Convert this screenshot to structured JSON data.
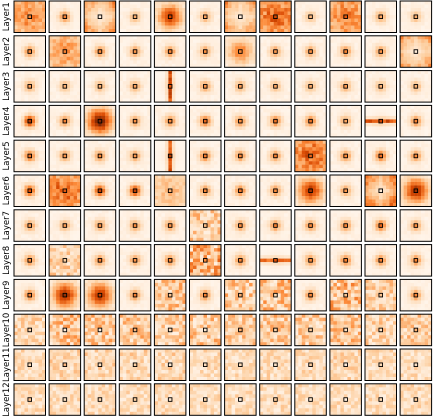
{
  "chart_data": {
    "type": "heatmap",
    "description_kind": "grid of attention-map heatmaps, one row per layer",
    "row_labels": [
      "Layer1",
      "Layer2",
      "Layer3",
      "Layer4",
      "Layer5",
      "Layer6",
      "Layer7",
      "Layer8",
      "Layer9",
      "Layer10",
      "Layer11",
      "Layer12"
    ],
    "n_cols": 12,
    "colormap": [
      "#fff5eb",
      "#fdd0a2",
      "#fd8d3c",
      "#d94801",
      "#7f2704"
    ],
    "grid": false,
    "legend": "none",
    "patterns": [
      [
        [
          "block",
          0.8
        ],
        [
          "peak",
          0.5
        ],
        [
          "edge",
          0.6
        ],
        [
          "peak",
          0.35
        ],
        [
          "blob",
          0.75
        ],
        [
          "peak",
          0.4
        ],
        [
          "edge",
          0.6
        ],
        [
          "block",
          1.0
        ],
        [
          "peak",
          0.3
        ],
        [
          "block",
          0.9
        ],
        [
          "peak",
          0.4
        ],
        [
          "peak",
          0.35
        ]
      ],
      [
        [
          "peak",
          0.5
        ],
        [
          "block",
          0.7
        ],
        [
          "peak",
          0.5
        ],
        [
          "peak",
          0.45
        ],
        [
          "peak",
          0.5
        ],
        [
          "peak",
          0.45
        ],
        [
          "blob",
          0.5
        ],
        [
          "peak",
          0.45
        ],
        [
          "peak",
          0.45
        ],
        [
          "peak",
          0.5
        ],
        [
          "peak",
          0.45
        ],
        [
          "edge",
          0.6
        ]
      ],
      [
        [
          "peak",
          0.4
        ],
        [
          "peak",
          0.35
        ],
        [
          "peak",
          0.35
        ],
        [
          "peak",
          0.4
        ],
        [
          "vline",
          0.8
        ],
        [
          "peak",
          0.45
        ],
        [
          "peak",
          0.4
        ],
        [
          "peak",
          0.35
        ],
        [
          "peak",
          0.35
        ],
        [
          "peak",
          0.4
        ],
        [
          "peak",
          0.35
        ],
        [
          "peak",
          0.35
        ]
      ],
      [
        [
          "peak",
          0.85
        ],
        [
          "peak",
          0.5
        ],
        [
          "blob",
          1.0
        ],
        [
          "peak",
          0.45
        ],
        [
          "peak",
          0.5
        ],
        [
          "peak",
          0.6
        ],
        [
          "peak",
          0.5
        ],
        [
          "peak",
          0.55
        ],
        [
          "peak",
          0.55
        ],
        [
          "peak",
          0.4
        ],
        [
          "hline",
          0.8
        ],
        [
          "peak",
          0.5
        ]
      ],
      [
        [
          "peak",
          0.6
        ],
        [
          "peak",
          0.45
        ],
        [
          "peak",
          0.5
        ],
        [
          "peak",
          0.45
        ],
        [
          "vline",
          0.8
        ],
        [
          "peak",
          0.55
        ],
        [
          "peak",
          0.5
        ],
        [
          "peak",
          0.5
        ],
        [
          "block",
          1.0
        ],
        [
          "peak",
          0.5
        ],
        [
          "peak",
          0.6
        ],
        [
          "peak",
          0.5
        ]
      ],
      [
        [
          "peak",
          0.7
        ],
        [
          "block",
          1.0
        ],
        [
          "peak",
          0.8
        ],
        [
          "peak",
          0.8
        ],
        [
          "block",
          0.5
        ],
        [
          "peak",
          0.5
        ],
        [
          "peak",
          0.55
        ],
        [
          "peak",
          0.5
        ],
        [
          "blob",
          0.8
        ],
        [
          "peak",
          0.45
        ],
        [
          "edge",
          0.8
        ],
        [
          "blob",
          0.85
        ]
      ],
      [
        [
          "peak",
          0.45
        ],
        [
          "peak",
          0.4
        ],
        [
          "peak",
          0.45
        ],
        [
          "peak",
          0.45
        ],
        [
          "peak",
          0.45
        ],
        [
          "noise",
          0.45
        ],
        [
          "peak",
          0.45
        ],
        [
          "peak",
          0.5
        ],
        [
          "peak",
          0.5
        ],
        [
          "peak",
          0.5
        ],
        [
          "peak",
          0.6
        ],
        [
          "peak",
          0.45
        ]
      ],
      [
        [
          "peak",
          0.5
        ],
        [
          "noise",
          0.4
        ],
        [
          "peak",
          0.5
        ],
        [
          "peak",
          0.45
        ],
        [
          "peak",
          0.5
        ],
        [
          "noise",
          0.7
        ],
        [
          "peak",
          0.5
        ],
        [
          "hline",
          0.7
        ],
        [
          "peak",
          0.5
        ],
        [
          "peak",
          0.55
        ],
        [
          "peak",
          0.5
        ],
        [
          "peak",
          0.5
        ]
      ],
      [
        [
          "peak",
          0.55
        ],
        [
          "blob",
          0.85
        ],
        [
          "blob",
          0.8
        ],
        [
          "peak",
          0.5
        ],
        [
          "noise",
          0.5
        ],
        [
          "peak",
          0.5
        ],
        [
          "noise",
          0.5
        ],
        [
          "noise",
          0.55
        ],
        [
          "peak",
          0.5
        ],
        [
          "noise",
          0.6
        ],
        [
          "noise",
          0.4
        ],
        [
          "peak",
          0.5
        ]
      ],
      [
        [
          "noise",
          0.35
        ],
        [
          "noise",
          0.55
        ],
        [
          "noise",
          0.5
        ],
        [
          "noise",
          0.5
        ],
        [
          "noise",
          0.45
        ],
        [
          "noise",
          0.5
        ],
        [
          "noise",
          0.45
        ],
        [
          "noise",
          0.5
        ],
        [
          "noise",
          0.45
        ],
        [
          "noise",
          0.5
        ],
        [
          "noise",
          0.4
        ],
        [
          "noise",
          0.45
        ]
      ],
      [
        [
          "noise",
          0.3
        ],
        [
          "noise",
          0.35
        ],
        [
          "noise",
          0.35
        ],
        [
          "noise",
          0.35
        ],
        [
          "noise",
          0.35
        ],
        [
          "noise",
          0.3
        ],
        [
          "noise",
          0.3
        ],
        [
          "noise",
          0.3
        ],
        [
          "noise",
          0.3
        ],
        [
          "noise",
          0.35
        ],
        [
          "noise",
          0.3
        ],
        [
          "noise",
          0.3
        ]
      ],
      [
        [
          "noise",
          0.3
        ],
        [
          "noise",
          0.3
        ],
        [
          "noise",
          0.3
        ],
        [
          "noise",
          0.3
        ],
        [
          "noise",
          0.3
        ],
        [
          "noise",
          0.3
        ],
        [
          "noise",
          0.3
        ],
        [
          "noise",
          0.3
        ],
        [
          "noise",
          0.3
        ],
        [
          "noise",
          0.3
        ],
        [
          "noise",
          0.3
        ],
        [
          "noise",
          0.3
        ]
      ]
    ]
  }
}
